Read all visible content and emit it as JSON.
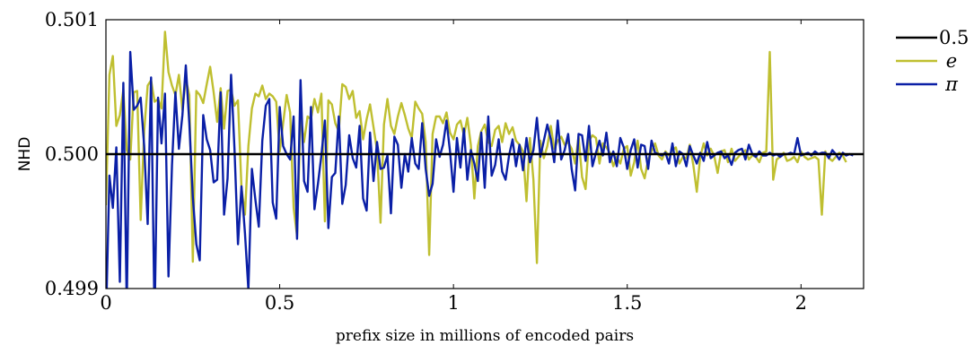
{
  "chart_data": {
    "type": "line",
    "title": "",
    "xlabel": "prefix size in millions of encoded pairs",
    "ylabel": "NHD",
    "xlim": [
      0,
      2.18
    ],
    "ylim": [
      0.499,
      0.501
    ],
    "x_ticks": [
      {
        "value": 0,
        "label": "0"
      },
      {
        "value": 0.5,
        "label": "0.5"
      },
      {
        "value": 1,
        "label": "1"
      },
      {
        "value": 1.5,
        "label": "1.5"
      },
      {
        "value": 2,
        "label": "2"
      }
    ],
    "y_ticks": [
      {
        "value": 0.499,
        "label": "0.499"
      },
      {
        "value": 0.5,
        "label": "0.500"
      },
      {
        "value": 0.501,
        "label": "0.501"
      }
    ],
    "grid": false,
    "legend_position": "outside-right",
    "x_step": 0.01,
    "series": [
      {
        "name": "0.5",
        "color": "#000000",
        "style": "constant",
        "value": 0.5
      },
      {
        "name": "e",
        "color": "#bfbf30",
        "y": [
          0.49962,
          0.50059,
          0.50073,
          0.50021,
          0.50029,
          0.50048,
          0.50003,
          0.49996,
          0.50046,
          0.50047,
          0.49951,
          0.50017,
          0.50051,
          0.50055,
          0.50039,
          0.50041,
          0.50034,
          0.50091,
          0.50061,
          0.50051,
          0.50044,
          0.50059,
          0.50033,
          0.50056,
          0.50044,
          0.4992,
          0.50047,
          0.50044,
          0.50038,
          0.50052,
          0.50065,
          0.50046,
          0.50024,
          0.50049,
          0.50019,
          0.50047,
          0.50048,
          0.50036,
          0.5004,
          0.49975,
          0.49955,
          0.50006,
          0.50034,
          0.50045,
          0.50043,
          0.50051,
          0.50041,
          0.50045,
          0.50043,
          0.50039,
          0.50002,
          0.50023,
          0.50044,
          0.50031,
          0.4996,
          0.49939,
          0.50029,
          0.50009,
          0.50028,
          0.50026,
          0.50041,
          0.50031,
          0.50045,
          0.4995,
          0.5004,
          0.50037,
          0.50023,
          0.50017,
          0.50052,
          0.5005,
          0.50041,
          0.50047,
          0.50027,
          0.50032,
          0.50011,
          0.50026,
          0.50037,
          0.5002,
          0.50003,
          0.49949,
          0.50022,
          0.50041,
          0.50021,
          0.50015,
          0.50028,
          0.50038,
          0.50029,
          0.50019,
          0.50012,
          0.50039,
          0.50034,
          0.5003,
          0.50009,
          0.49925,
          0.50015,
          0.50028,
          0.50028,
          0.50023,
          0.50031,
          0.50016,
          0.50011,
          0.50022,
          0.50025,
          0.50014,
          0.50027,
          0.50007,
          0.49967,
          0.50006,
          0.50017,
          0.50022,
          0.50009,
          0.50006,
          0.50018,
          0.50021,
          0.50009,
          0.50023,
          0.50015,
          0.5002,
          0.5001,
          0.50007,
          0.50002,
          0.49965,
          0.50012,
          0.49981,
          0.49919,
          0.5001,
          0.49997,
          0.50006,
          0.50021,
          0.50004,
          0.5001,
          0.50013,
          0.50007,
          0.50009,
          0.50004,
          0.49993,
          0.50013,
          0.49983,
          0.49974,
          0.5001,
          0.50014,
          0.50012,
          0.49993,
          0.50008,
          0.50005,
          0.50001,
          0.49991,
          0.49998,
          0.49993,
          0.50004,
          0.50006,
          0.49984,
          0.49994,
          0.5001,
          0.49989,
          0.49982,
          0.49996,
          0.50002,
          0.50008,
          0.49999,
          0.49996,
          0.50002,
          0.49999,
          0.50003,
          0.50005,
          0.49993,
          0.49998,
          0.49997,
          0.50007,
          0.49992,
          0.49972,
          0.49998,
          0.50008,
          0.49999,
          0.50004,
          0.49999,
          0.49986,
          0.50002,
          0.50003,
          0.49994,
          0.50004,
          0.49995,
          0.49998,
          0.50001,
          0.50003,
          0.49996,
          0.49999,
          0.49998,
          0.49994,
          0.50001,
          0.50002,
          0.50076,
          0.49981,
          0.49996,
          0.49998,
          0.50001,
          0.49995,
          0.49996,
          0.49998,
          0.49994,
          0.50002,
          0.49998,
          0.49996,
          0.49997,
          0.49998,
          0.49996,
          0.49955,
          0.50002,
          0.49997,
          0.49995,
          0.49998,
          0.50001,
          0.49999,
          0.49994
        ]
      },
      {
        "name": "π",
        "color": "#0a1fa6",
        "y": [
          0.49875,
          0.49984,
          0.4996,
          0.50005,
          0.49905,
          0.50053,
          0.49887,
          0.50076,
          0.50033,
          0.50036,
          0.50042,
          0.50006,
          0.49948,
          0.50057,
          0.49877,
          0.50042,
          0.50008,
          0.50045,
          0.49909,
          0.49992,
          0.50046,
          0.50004,
          0.50029,
          0.50066,
          0.50023,
          0.49968,
          0.49933,
          0.49921,
          0.50029,
          0.50011,
          0.50003,
          0.49979,
          0.49981,
          0.50046,
          0.49955,
          0.49982,
          0.50059,
          0.50004,
          0.49933,
          0.49976,
          0.49941,
          0.49899,
          0.49989,
          0.49966,
          0.49946,
          0.5001,
          0.50036,
          0.50041,
          0.49964,
          0.49952,
          0.50035,
          0.50006,
          0.5,
          0.49996,
          0.50028,
          0.49937,
          0.50055,
          0.4998,
          0.49972,
          0.50035,
          0.49959,
          0.49978,
          0.49999,
          0.50025,
          0.49945,
          0.49983,
          0.49986,
          0.50028,
          0.49963,
          0.49977,
          0.50014,
          0.49997,
          0.4999,
          0.50021,
          0.49967,
          0.49958,
          0.50016,
          0.4998,
          0.50009,
          0.49989,
          0.4999,
          0.49999,
          0.49956,
          0.50013,
          0.50007,
          0.49975,
          0.5,
          0.49987,
          0.50012,
          0.49993,
          0.49989,
          0.50023,
          0.49989,
          0.49969,
          0.49978,
          0.50011,
          0.49998,
          0.50007,
          0.50025,
          0.50002,
          0.49972,
          0.50012,
          0.4999,
          0.50019,
          0.49981,
          0.50003,
          0.49993,
          0.4998,
          0.50016,
          0.49975,
          0.50028,
          0.49984,
          0.49992,
          0.50011,
          0.49987,
          0.49981,
          0.49999,
          0.50011,
          0.49991,
          0.50007,
          0.49988,
          0.50012,
          0.49994,
          0.50003,
          0.50027,
          0.49998,
          0.5001,
          0.50022,
          0.50011,
          0.49994,
          0.50025,
          0.49996,
          0.50003,
          0.50015,
          0.49989,
          0.49973,
          0.50015,
          0.50014,
          0.49995,
          0.50021,
          0.49991,
          0.50001,
          0.5001,
          0.49999,
          0.50016,
          0.49994,
          0.50002,
          0.49991,
          0.50012,
          0.50005,
          0.49989,
          0.50003,
          0.50011,
          0.4999,
          0.50007,
          0.50006,
          0.49989,
          0.5001,
          0.50001,
          0.5,
          0.49999,
          0.50001,
          0.49993,
          0.50008,
          0.49991,
          0.50002,
          0.5,
          0.49991,
          0.50006,
          0.49999,
          0.49993,
          0.50001,
          0.49995,
          0.50009,
          0.49997,
          0.49999,
          0.50001,
          0.50002,
          0.49997,
          0.49999,
          0.49992,
          0.50001,
          0.50003,
          0.50004,
          0.49996,
          0.50007,
          0.5,
          0.49998,
          0.50002,
          0.49999,
          0.49999,
          0.50001,
          0.49999,
          0.5,
          0.49998,
          0.5,
          0.5,
          0.50001,
          0.5,
          0.50012,
          0.49999,
          0.5,
          0.50001,
          0.49999,
          0.50002,
          0.5,
          0.50001,
          0.50001,
          0.49997,
          0.50003,
          0.5,
          0.49996,
          0.50001,
          0.49999,
          0.5,
          0.49999
        ]
      }
    ]
  }
}
